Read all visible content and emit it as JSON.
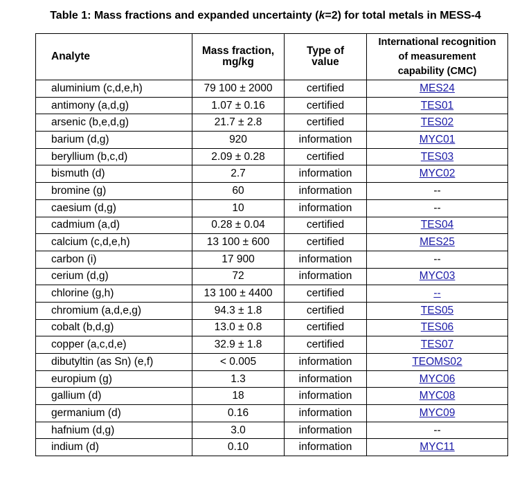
{
  "title": {
    "prefix": "Table 1: Mass fractions and expanded uncertainty (",
    "k": "k",
    "suffix": "=2) for total metals in MESS-4"
  },
  "headers": {
    "analyte": "Analyte",
    "mass_fraction_1": "Mass fraction,",
    "mass_fraction_2": "mg/kg",
    "type_1": "Type of",
    "type_2": "value",
    "cmc_1": "International recognition",
    "cmc_2": "of measurement",
    "cmc_3": "capability (CMC)"
  },
  "link_color": "#1a1aa6",
  "rows": [
    {
      "analyte": "aluminium (c,d,e,h)",
      "value": "79 100 ± 2000",
      "type": "certified",
      "cmc": "MES24",
      "link": true
    },
    {
      "analyte": "antimony (a,d,g)",
      "value": "1.07 ± 0.16",
      "type": "certified",
      "cmc": "TES01",
      "link": true
    },
    {
      "analyte": "arsenic (b,e,d,g)",
      "value": "21.7 ± 2.8",
      "type": "certified",
      "cmc": "TES02",
      "link": true
    },
    {
      "analyte": "barium (d,g)",
      "value": "920",
      "type": "information",
      "cmc": "MYC01",
      "link": true
    },
    {
      "analyte": "beryllium (b,c,d)",
      "value": "2.09 ± 0.28",
      "type": "certified",
      "cmc": "TES03",
      "link": true
    },
    {
      "analyte": "bismuth (d)",
      "value": "2.7",
      "type": "information",
      "cmc": "MYC02",
      "link": true
    },
    {
      "analyte": "bromine (g)",
      "value": "60",
      "type": "information",
      "cmc": "--",
      "link": false
    },
    {
      "analyte": "caesium (d,g)",
      "value": "10",
      "type": "information",
      "cmc": "--",
      "link": false
    },
    {
      "analyte": "cadmium (a,d)",
      "value": "0.28 ± 0.04",
      "type": "certified",
      "cmc": "TES04",
      "link": true
    },
    {
      "analyte": "calcium (c,d,e,h)",
      "value": "13 100 ± 600",
      "type": "certified",
      "cmc": "MES25",
      "link": true
    },
    {
      "analyte": "carbon (i)",
      "value": "17 900",
      "type": "information",
      "cmc": "--",
      "link": false
    },
    {
      "analyte": "cerium (d,g)",
      "value": "72",
      "type": "information",
      "cmc": "MYC03",
      "link": true
    },
    {
      "analyte": "chlorine (g,h)",
      "value": "13 100 ± 4400",
      "type": "certified",
      "cmc": "--",
      "link": true
    },
    {
      "analyte": "chromium (a,d,e,g)",
      "value": "94.3 ± 1.8",
      "type": "certified",
      "cmc": "TES05",
      "link": true
    },
    {
      "analyte": "cobalt (b,d,g)",
      "value": "13.0 ± 0.8",
      "type": "certified",
      "cmc": "TES06",
      "link": true
    },
    {
      "analyte": "copper (a,c,d,e)",
      "value": "32.9 ± 1.8",
      "type": "certified",
      "cmc": "TES07",
      "link": true
    },
    {
      "analyte": "dibutyltin (as Sn) (e,f)",
      "value": "< 0.005",
      "type": "information",
      "cmc": "TEOMS02",
      "link": true
    },
    {
      "analyte": "europium (g)",
      "value": "1.3",
      "type": "information",
      "cmc": "MYC06",
      "link": true
    },
    {
      "analyte": "gallium (d)",
      "value": "18",
      "type": "information",
      "cmc": "MYC08",
      "link": true
    },
    {
      "analyte": "germanium (d)",
      "value": "0.16",
      "type": "information",
      "cmc": "MYC09",
      "link": true
    },
    {
      "analyte": "hafnium (d,g)",
      "value": "3.0",
      "type": "information",
      "cmc": "--",
      "link": false
    },
    {
      "analyte": "indium (d)",
      "value": "0.10",
      "type": "information",
      "cmc": "MYC11",
      "link": true
    }
  ]
}
